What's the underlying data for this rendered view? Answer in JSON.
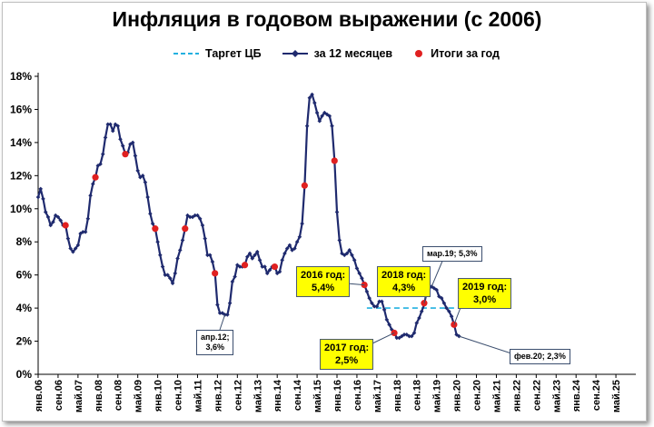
{
  "title": "Инфляция в годовом выражении (с 2006)",
  "legend": {
    "target_label": "Таргет ЦБ",
    "monthly_label": "за 12 месяцев",
    "annual_label": "Итоги за год"
  },
  "colors": {
    "line": "#1f2a6e",
    "target": "#22b0e0",
    "annual_marker": "#e02020",
    "callout_fill": "#ffff00"
  },
  "callouts": {
    "y2016": [
      "2016 год:",
      "5,4%"
    ],
    "y2018": [
      "2018 год:",
      "4,3%"
    ],
    "y2019": [
      "2019 год:",
      "3,0%"
    ],
    "y2017": [
      "2017 год:",
      "2,5%"
    ],
    "apr12": [
      "апр.12;",
      "3,6%"
    ],
    "mar19": "мар.19; 5,3%",
    "feb20": "фев.20; 2,3%"
  },
  "chart_data": {
    "type": "line",
    "title": "Инфляция в годовом выражении (с 2006)",
    "ylim": [
      0,
      18
    ],
    "yticks": [
      "0%",
      "2%",
      "4%",
      "6%",
      "8%",
      "10%",
      "12%",
      "14%",
      "16%",
      "18%"
    ],
    "x_tick_labels": [
      "янв.06",
      "сен.06",
      "май.07",
      "янв.08",
      "сен.08",
      "май.09",
      "янв.10",
      "сен.10",
      "май.11",
      "янв.12",
      "сен.12",
      "май.13",
      "янв.14",
      "сен.14",
      "май.15",
      "янв.16",
      "сен.16",
      "май.17",
      "янв.18",
      "сен.18",
      "май.19",
      "янв.20",
      "сен.20",
      "май.21",
      "янв.22",
      "сен.22",
      "май.23",
      "янв.24",
      "сен.24",
      "май.25"
    ],
    "series": [
      {
        "name": "за 12 месяцев",
        "start": "янв.06",
        "frequency": "monthly",
        "values": [
          10.7,
          11.2,
          10.6,
          9.8,
          9.5,
          9.0,
          9.2,
          9.6,
          9.5,
          9.3,
          9.0,
          9.0,
          8.2,
          7.6,
          7.4,
          7.6,
          7.8,
          8.5,
          8.6,
          8.6,
          9.4,
          10.8,
          11.5,
          11.9,
          12.6,
          12.7,
          13.3,
          14.3,
          15.1,
          15.1,
          14.7,
          15.1,
          15.0,
          14.2,
          13.8,
          13.3,
          13.4,
          13.9,
          14.0,
          13.2,
          12.3,
          11.9,
          12.0,
          11.6,
          10.7,
          9.7,
          9.1,
          8.8,
          8.0,
          7.2,
          6.5,
          6.0,
          6.0,
          5.8,
          5.5,
          6.1,
          7.0,
          7.5,
          8.1,
          8.8,
          9.6,
          9.5,
          9.5,
          9.6,
          9.6,
          9.4,
          9.0,
          8.2,
          7.2,
          7.2,
          6.8,
          6.1,
          4.2,
          3.7,
          3.7,
          3.6,
          3.6,
          4.3,
          5.6,
          5.9,
          6.6,
          6.5,
          6.5,
          6.6,
          7.1,
          7.3,
          7.0,
          7.2,
          7.4,
          6.9,
          6.5,
          6.5,
          6.1,
          6.3,
          6.5,
          6.5,
          6.1,
          6.2,
          6.9,
          7.3,
          7.6,
          7.8,
          7.5,
          7.6,
          8.0,
          8.3,
          9.1,
          11.4,
          15.0,
          16.7,
          16.9,
          16.4,
          15.8,
          15.3,
          15.6,
          15.8,
          15.7,
          15.6,
          15.0,
          12.9,
          9.8,
          8.1,
          7.3,
          7.2,
          7.3,
          7.5,
          7.2,
          6.9,
          6.4,
          6.1,
          5.8,
          5.4,
          5.0,
          4.6,
          4.3,
          4.1,
          4.1,
          4.4,
          4.4,
          3.9,
          3.3,
          3.0,
          2.7,
          2.5,
          2.2,
          2.2,
          2.3,
          2.4,
          2.4,
          2.3,
          2.3,
          2.5,
          3.1,
          3.4,
          3.8,
          4.2,
          5.0,
          5.2,
          5.3,
          5.2,
          5.1,
          4.7,
          4.6,
          4.3,
          4.0,
          3.8,
          3.5,
          3.0,
          2.4,
          2.3
        ]
      },
      {
        "name": "Таргет ЦБ",
        "x_from": "янв.17",
        "x_to": "дек.20",
        "value": 4.0
      },
      {
        "name": "Итоги за год",
        "points": [
          {
            "x": "дек.06",
            "y": 9.0
          },
          {
            "x": "дек.07",
            "y": 11.9
          },
          {
            "x": "дек.08",
            "y": 13.3
          },
          {
            "x": "дек.09",
            "y": 8.8
          },
          {
            "x": "дек.10",
            "y": 8.8
          },
          {
            "x": "дек.11",
            "y": 6.1
          },
          {
            "x": "дек.12",
            "y": 6.6
          },
          {
            "x": "дек.13",
            "y": 6.5
          },
          {
            "x": "дек.14",
            "y": 11.4
          },
          {
            "x": "дек.15",
            "y": 12.9
          },
          {
            "x": "дек.16",
            "y": 5.4
          },
          {
            "x": "дек.17",
            "y": 2.5
          },
          {
            "x": "дек.18",
            "y": 4.3
          },
          {
            "x": "дек.19",
            "y": 3.0
          }
        ]
      }
    ],
    "legend_position": "top",
    "grid": false
  }
}
